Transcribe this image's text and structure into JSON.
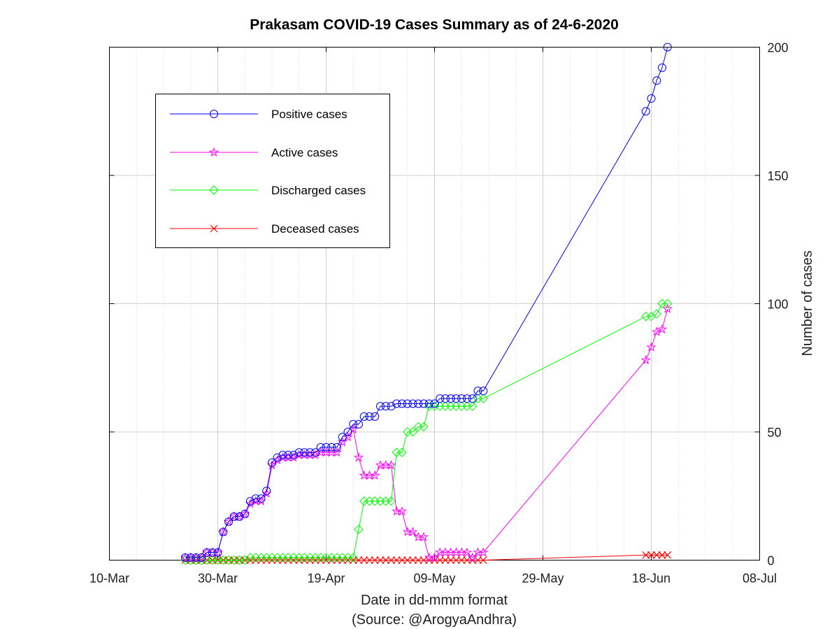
{
  "chart_data": {
    "type": "line",
    "title": "Prakasam COVID-19 Cases Summary as of 24-6-2020",
    "xlabel": "Date in dd-mmm format",
    "source_note": "(Source: @ArogyaAndhra)",
    "ylabel": "Number of cases",
    "x_ticks": [
      "10-Mar",
      "30-Mar",
      "19-Apr",
      "09-May",
      "29-May",
      "18-Jun",
      "08-Jul"
    ],
    "xlim": [
      "2020-03-10",
      "2020-07-08"
    ],
    "y_ticks": [
      0,
      50,
      100,
      150,
      200
    ],
    "ylim": [
      0,
      200
    ],
    "y_axis_side": "right",
    "grid": true,
    "legend_position": "top-left",
    "series": [
      {
        "name": "Positive cases",
        "color": "#0000ff",
        "marker": "circle",
        "x": [
          "2020-03-24",
          "2020-03-25",
          "2020-03-26",
          "2020-03-27",
          "2020-03-28",
          "2020-03-29",
          "2020-03-30",
          "2020-03-31",
          "2020-04-01",
          "2020-04-02",
          "2020-04-03",
          "2020-04-04",
          "2020-04-05",
          "2020-04-06",
          "2020-04-07",
          "2020-04-08",
          "2020-04-09",
          "2020-04-10",
          "2020-04-11",
          "2020-04-12",
          "2020-04-13",
          "2020-04-14",
          "2020-04-15",
          "2020-04-16",
          "2020-04-17",
          "2020-04-18",
          "2020-04-19",
          "2020-04-20",
          "2020-04-21",
          "2020-04-22",
          "2020-04-23",
          "2020-04-24",
          "2020-04-25",
          "2020-04-26",
          "2020-04-27",
          "2020-04-28",
          "2020-04-29",
          "2020-04-30",
          "2020-05-01",
          "2020-05-02",
          "2020-05-03",
          "2020-05-04",
          "2020-05-05",
          "2020-05-06",
          "2020-05-07",
          "2020-05-08",
          "2020-05-09",
          "2020-05-10",
          "2020-05-11",
          "2020-05-12",
          "2020-05-13",
          "2020-05-14",
          "2020-05-15",
          "2020-05-16",
          "2020-05-17",
          "2020-05-18",
          "2020-06-17",
          "2020-06-18",
          "2020-06-19",
          "2020-06-20",
          "2020-06-21"
        ],
        "values": [
          1,
          1,
          1,
          1,
          3,
          3,
          3,
          11,
          15,
          17,
          17,
          18,
          23,
          24,
          24,
          27,
          38,
          40,
          41,
          41,
          41,
          42,
          42,
          42,
          42,
          44,
          44,
          44,
          44,
          48,
          50,
          53,
          53,
          56,
          56,
          56,
          60,
          60,
          60,
          61,
          61,
          61,
          61,
          61,
          61,
          61,
          61,
          63,
          63,
          63,
          63,
          63,
          63,
          63,
          66,
          66,
          175,
          180,
          187,
          192,
          200
        ]
      },
      {
        "name": "Active cases",
        "color": "#ff00ff",
        "marker": "star",
        "x": [
          "2020-03-24",
          "2020-03-25",
          "2020-03-26",
          "2020-03-27",
          "2020-03-28",
          "2020-03-29",
          "2020-03-30",
          "2020-03-31",
          "2020-04-01",
          "2020-04-02",
          "2020-04-03",
          "2020-04-04",
          "2020-04-05",
          "2020-04-06",
          "2020-04-07",
          "2020-04-08",
          "2020-04-09",
          "2020-04-10",
          "2020-04-11",
          "2020-04-12",
          "2020-04-13",
          "2020-04-14",
          "2020-04-15",
          "2020-04-16",
          "2020-04-17",
          "2020-04-18",
          "2020-04-19",
          "2020-04-20",
          "2020-04-21",
          "2020-04-22",
          "2020-04-23",
          "2020-04-24",
          "2020-04-25",
          "2020-04-26",
          "2020-04-27",
          "2020-04-28",
          "2020-04-29",
          "2020-04-30",
          "2020-05-01",
          "2020-05-02",
          "2020-05-03",
          "2020-05-04",
          "2020-05-05",
          "2020-05-06",
          "2020-05-07",
          "2020-05-08",
          "2020-05-09",
          "2020-05-10",
          "2020-05-11",
          "2020-05-12",
          "2020-05-13",
          "2020-05-14",
          "2020-05-15",
          "2020-05-16",
          "2020-05-17",
          "2020-05-18",
          "2020-06-17",
          "2020-06-18",
          "2020-06-19",
          "2020-06-20",
          "2020-06-21"
        ],
        "values": [
          1,
          1,
          1,
          1,
          3,
          3,
          3,
          11,
          15,
          17,
          17,
          18,
          22,
          23,
          23,
          26,
          37,
          39,
          40,
          40,
          40,
          41,
          41,
          41,
          41,
          42,
          42,
          42,
          42,
          46,
          48,
          51,
          40,
          33,
          33,
          33,
          37,
          37,
          37,
          19,
          19,
          11,
          11,
          9,
          9,
          1,
          1,
          3,
          3,
          3,
          3,
          3,
          3,
          1,
          3,
          3,
          78,
          83,
          89,
          90,
          98
        ]
      },
      {
        "name": "Discharged cases",
        "color": "#00ff00",
        "marker": "diamond",
        "x": [
          "2020-03-24",
          "2020-03-25",
          "2020-03-26",
          "2020-03-27",
          "2020-03-28",
          "2020-03-29",
          "2020-03-30",
          "2020-03-31",
          "2020-04-01",
          "2020-04-02",
          "2020-04-03",
          "2020-04-04",
          "2020-04-05",
          "2020-04-06",
          "2020-04-07",
          "2020-04-08",
          "2020-04-09",
          "2020-04-10",
          "2020-04-11",
          "2020-04-12",
          "2020-04-13",
          "2020-04-14",
          "2020-04-15",
          "2020-04-16",
          "2020-04-17",
          "2020-04-18",
          "2020-04-19",
          "2020-04-20",
          "2020-04-21",
          "2020-04-22",
          "2020-04-23",
          "2020-04-24",
          "2020-04-25",
          "2020-04-26",
          "2020-04-27",
          "2020-04-28",
          "2020-04-29",
          "2020-04-30",
          "2020-05-01",
          "2020-05-02",
          "2020-05-03",
          "2020-05-04",
          "2020-05-05",
          "2020-05-06",
          "2020-05-07",
          "2020-05-08",
          "2020-05-09",
          "2020-05-10",
          "2020-05-11",
          "2020-05-12",
          "2020-05-13",
          "2020-05-14",
          "2020-05-15",
          "2020-05-16",
          "2020-05-17",
          "2020-05-18",
          "2020-06-17",
          "2020-06-18",
          "2020-06-19",
          "2020-06-20",
          "2020-06-21"
        ],
        "values": [
          0,
          0,
          0,
          0,
          0,
          0,
          0,
          0,
          0,
          0,
          0,
          0,
          1,
          1,
          1,
          1,
          1,
          1,
          1,
          1,
          1,
          1,
          1,
          1,
          1,
          1,
          1,
          1,
          1,
          1,
          1,
          1,
          12,
          23,
          23,
          23,
          23,
          23,
          23,
          42,
          42,
          50,
          50,
          52,
          52,
          60,
          60,
          60,
          60,
          60,
          60,
          60,
          60,
          60,
          63,
          63,
          95,
          95,
          96,
          100,
          100
        ]
      },
      {
        "name": "Deceased cases",
        "color": "#ff0000",
        "marker": "cross",
        "x": [
          "2020-03-24",
          "2020-03-25",
          "2020-03-26",
          "2020-03-27",
          "2020-03-28",
          "2020-03-29",
          "2020-03-30",
          "2020-03-31",
          "2020-04-01",
          "2020-04-02",
          "2020-04-03",
          "2020-04-04",
          "2020-04-05",
          "2020-04-06",
          "2020-04-07",
          "2020-04-08",
          "2020-04-09",
          "2020-04-10",
          "2020-04-11",
          "2020-04-12",
          "2020-04-13",
          "2020-04-14",
          "2020-04-15",
          "2020-04-16",
          "2020-04-17",
          "2020-04-18",
          "2020-04-19",
          "2020-04-20",
          "2020-04-21",
          "2020-04-22",
          "2020-04-23",
          "2020-04-24",
          "2020-04-25",
          "2020-04-26",
          "2020-04-27",
          "2020-04-28",
          "2020-04-29",
          "2020-04-30",
          "2020-05-01",
          "2020-05-02",
          "2020-05-03",
          "2020-05-04",
          "2020-05-05",
          "2020-05-06",
          "2020-05-07",
          "2020-05-08",
          "2020-05-09",
          "2020-05-10",
          "2020-05-11",
          "2020-05-12",
          "2020-05-13",
          "2020-05-14",
          "2020-05-15",
          "2020-05-16",
          "2020-05-17",
          "2020-05-18",
          "2020-06-17",
          "2020-06-18",
          "2020-06-19",
          "2020-06-20",
          "2020-06-21"
        ],
        "values": [
          0,
          0,
          0,
          0,
          0,
          0,
          0,
          0,
          0,
          0,
          0,
          0,
          0,
          0,
          0,
          0,
          0,
          0,
          0,
          0,
          0,
          0,
          0,
          0,
          0,
          0,
          0,
          0,
          0,
          0,
          0,
          0,
          0,
          0,
          0,
          0,
          0,
          0,
          0,
          0,
          0,
          0,
          0,
          0,
          0,
          0,
          0,
          0,
          0,
          0,
          0,
          0,
          0,
          0,
          0,
          0,
          2,
          2,
          2,
          2,
          2
        ]
      }
    ]
  }
}
